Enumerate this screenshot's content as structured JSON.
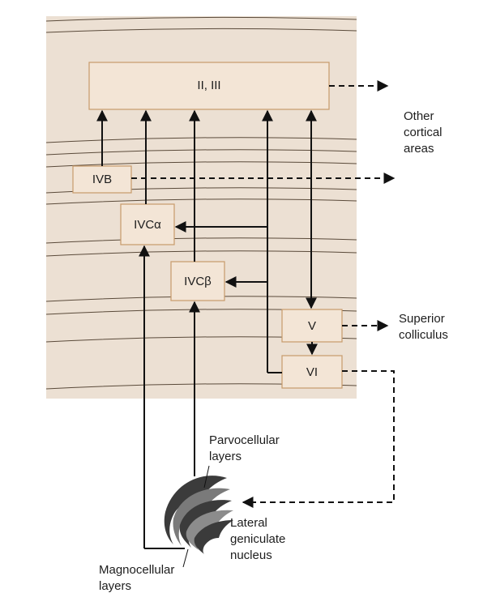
{
  "colors": {
    "cortex_fill": "#ece0d3",
    "box_fill": "#f3e5d6",
    "box_border": "#c79a6a",
    "line": "#111111",
    "lgn_dark": "#3b3b3b"
  },
  "layers": {
    "II_III": "II, III",
    "IVB": "IVB",
    "IVCa": "IVCα",
    "IVCb": "IVCβ",
    "V": "V",
    "VI": "VI"
  },
  "targets": {
    "other_cortical": [
      "Other",
      "cortical",
      "areas"
    ],
    "superior_colliculus": [
      "Superior",
      "colliculus"
    ]
  },
  "lgn": {
    "parvocellular": [
      "Parvocellular",
      "layers"
    ],
    "magnocellular": [
      "Magnocellular",
      "layers"
    ],
    "nucleus": [
      "Lateral",
      "geniculate",
      "nucleus"
    ]
  }
}
